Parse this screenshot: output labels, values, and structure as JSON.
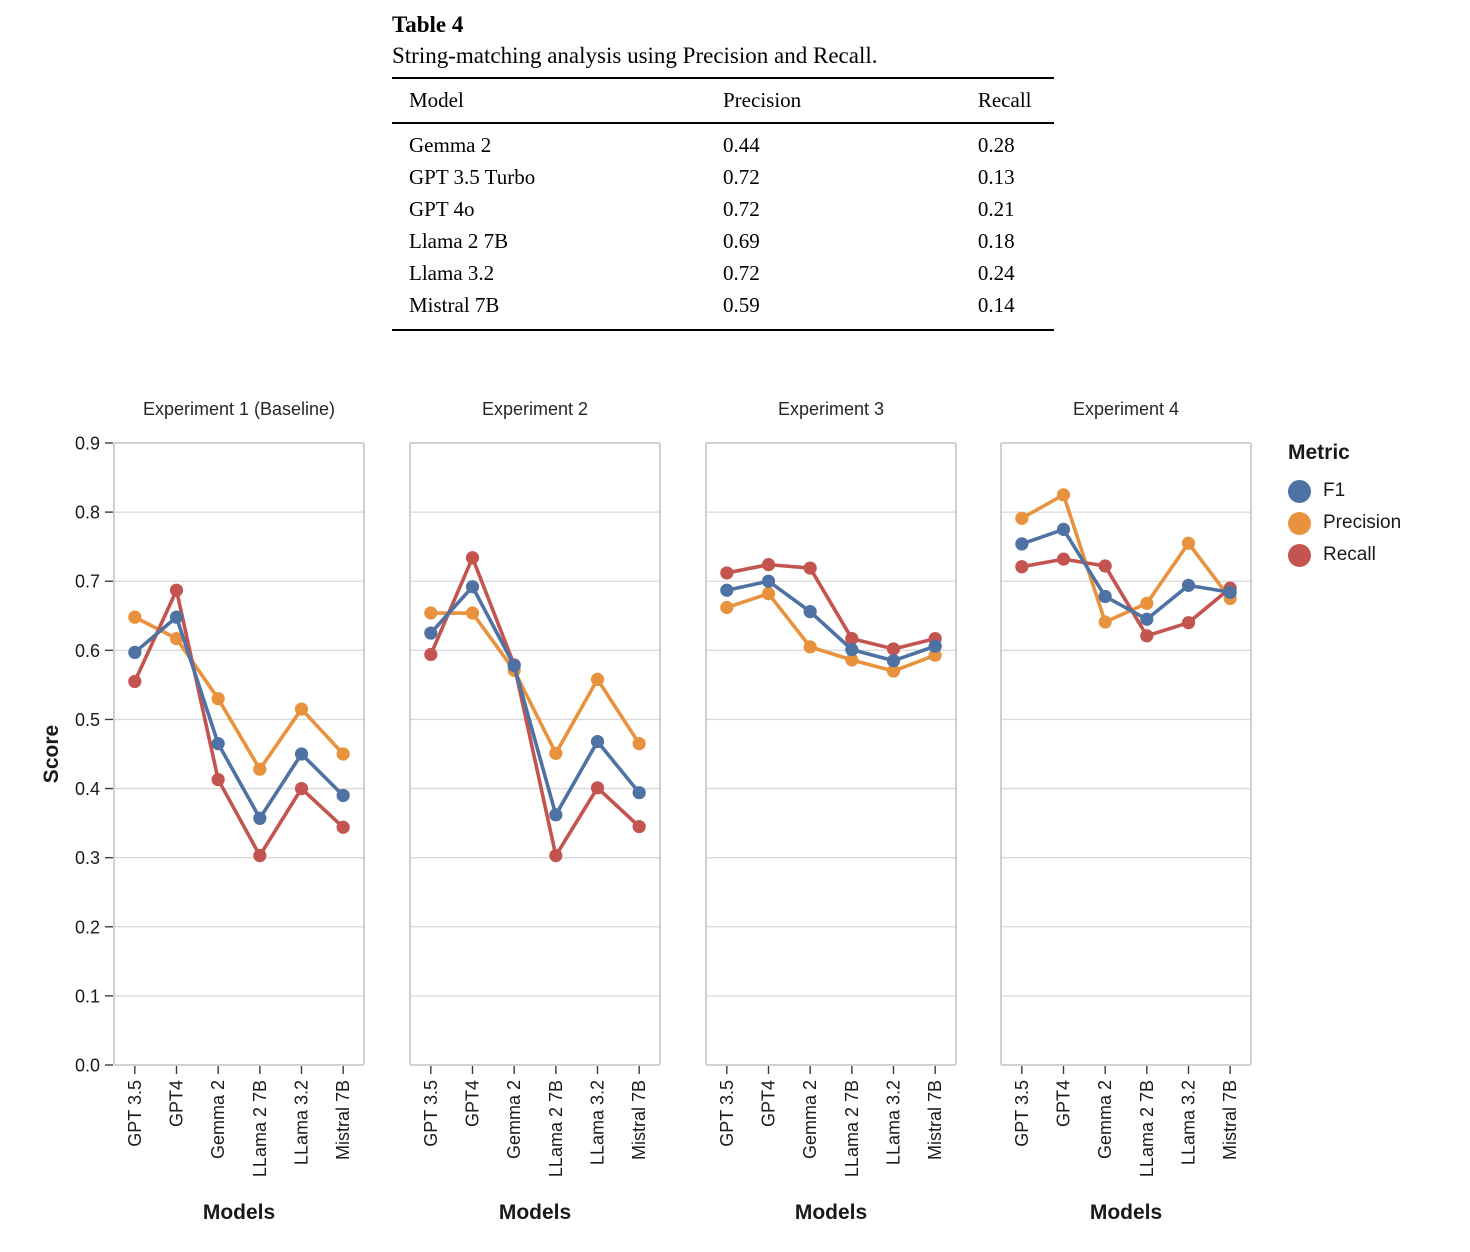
{
  "table": {
    "title": "Table 4",
    "caption": "String-matching analysis using Precision and Recall.",
    "columns": [
      "Model",
      "Precision",
      "Recall"
    ],
    "rows": [
      [
        "Gemma 2",
        "0.44",
        "0.28"
      ],
      [
        "GPT 3.5 Turbo",
        "0.72",
        "0.13"
      ],
      [
        "GPT 4o",
        "0.72",
        "0.21"
      ],
      [
        "Llama 2 7B",
        "0.69",
        "0.18"
      ],
      [
        "Llama 3.2",
        "0.72",
        "0.24"
      ],
      [
        "Mistral 7B",
        "0.59",
        "0.14"
      ]
    ]
  },
  "chart_data": {
    "type": "line",
    "categories": [
      "GPT 3.5",
      "GPT4",
      "Gemma 2",
      "LLama 2 7B",
      "LLama 3.2",
      "Mistral 7B"
    ],
    "xlabel": "Models",
    "ylabel": "Score",
    "ylim": [
      0.0,
      0.9
    ],
    "ytick_step": 0.1,
    "grid": true,
    "legend": {
      "title": "Metric",
      "position": "right",
      "items": [
        {
          "label": "F1",
          "color": "#4d72a3"
        },
        {
          "label": "Precision",
          "color": "#e8923e"
        },
        {
          "label": "Recall",
          "color": "#c4544f"
        }
      ]
    },
    "draw_order": [
      "Precision",
      "Recall",
      "F1"
    ],
    "panels": [
      {
        "title": "Experiment 1 (Baseline)",
        "series": [
          {
            "name": "F1",
            "values": [
              0.597,
              0.648,
              0.465,
              0.357,
              0.45,
              0.39
            ]
          },
          {
            "name": "Precision",
            "values": [
              0.648,
              0.617,
              0.53,
              0.428,
              0.515,
              0.45
            ]
          },
          {
            "name": "Recall",
            "values": [
              0.555,
              0.687,
              0.413,
              0.303,
              0.4,
              0.344
            ]
          }
        ]
      },
      {
        "title": "Experiment 2",
        "series": [
          {
            "name": "F1",
            "values": [
              0.625,
              0.692,
              0.578,
              0.362,
              0.468,
              0.394
            ]
          },
          {
            "name": "Precision",
            "values": [
              0.654,
              0.654,
              0.571,
              0.451,
              0.558,
              0.465
            ]
          },
          {
            "name": "Recall",
            "values": [
              0.594,
              0.734,
              0.579,
              0.303,
              0.401,
              0.345
            ]
          }
        ]
      },
      {
        "title": "Experiment 3",
        "series": [
          {
            "name": "F1",
            "values": [
              0.687,
              0.7,
              0.656,
              0.601,
              0.585,
              0.606
            ]
          },
          {
            "name": "Precision",
            "values": [
              0.662,
              0.682,
              0.605,
              0.586,
              0.57,
              0.593
            ]
          },
          {
            "name": "Recall",
            "values": [
              0.712,
              0.724,
              0.719,
              0.617,
              0.602,
              0.617
            ]
          }
        ]
      },
      {
        "title": "Experiment 4",
        "series": [
          {
            "name": "F1",
            "values": [
              0.754,
              0.775,
              0.678,
              0.645,
              0.694,
              0.684
            ]
          },
          {
            "name": "Precision",
            "values": [
              0.791,
              0.825,
              0.641,
              0.668,
              0.755,
              0.675
            ]
          },
          {
            "name": "Recall",
            "values": [
              0.721,
              0.732,
              0.722,
              0.621,
              0.64,
              0.69
            ]
          }
        ]
      }
    ]
  }
}
